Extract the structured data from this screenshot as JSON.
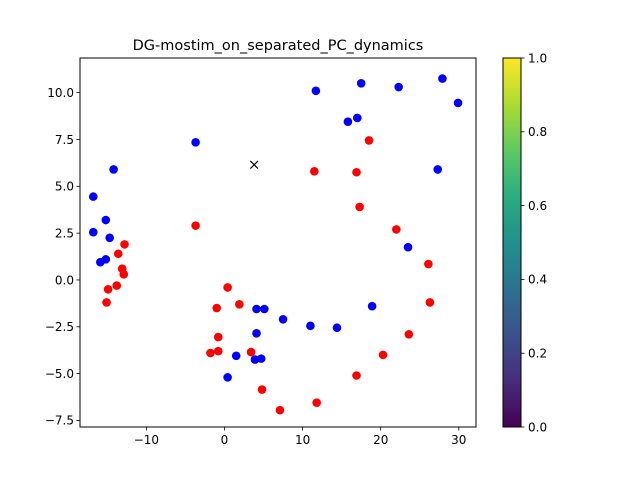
{
  "chart_data": {
    "type": "scatter",
    "title": "DG-mostim_on_separated_PC_dynamics",
    "xlabel": "",
    "ylabel": "",
    "xlim": [
      -18.5,
      32.2
    ],
    "ylim": [
      -7.85,
      11.85
    ],
    "xticks": [
      -10,
      0,
      10,
      20,
      30
    ],
    "xtick_labels": [
      "−10",
      "0",
      "10",
      "20",
      "30"
    ],
    "yticks": [
      -7.5,
      -5.0,
      -2.5,
      0.0,
      2.5,
      5.0,
      7.5,
      10.0
    ],
    "ytick_labels": [
      "−7.5",
      "−5.0",
      "−2.5",
      "0.0",
      "2.5",
      "5.0",
      "7.5",
      "10.0"
    ],
    "grid": false,
    "series": [
      {
        "color": "#0000ff",
        "marker": "circle",
        "points": [
          [
            -16.8,
            4.45
          ],
          [
            -16.8,
            2.55
          ],
          [
            -15.9,
            0.95
          ],
          [
            -15.2,
            1.1
          ],
          [
            -15.2,
            3.2
          ],
          [
            -14.7,
            2.25
          ],
          [
            -14.2,
            5.9
          ],
          [
            -3.7,
            7.35
          ],
          [
            11.7,
            10.1
          ],
          [
            15.8,
            8.45
          ],
          [
            17.0,
            8.65
          ],
          [
            17.5,
            10.5
          ],
          [
            22.3,
            10.3
          ],
          [
            27.9,
            10.75
          ],
          [
            29.9,
            9.45
          ],
          [
            27.3,
            5.9
          ],
          [
            23.5,
            1.75
          ],
          [
            18.9,
            -1.4
          ],
          [
            14.4,
            -2.55
          ],
          [
            11.0,
            -2.45
          ],
          [
            7.5,
            -2.1
          ],
          [
            5.1,
            -1.55
          ],
          [
            4.1,
            -1.55
          ],
          [
            4.1,
            -2.85
          ],
          [
            3.9,
            -4.25
          ],
          [
            4.7,
            -4.2
          ],
          [
            1.5,
            -4.05
          ],
          [
            0.4,
            -5.2
          ]
        ]
      },
      {
        "color": "#ff0000",
        "marker": "circle",
        "points": [
          [
            -12.8,
            1.9
          ],
          [
            -13.6,
            1.4
          ],
          [
            -13.1,
            0.6
          ],
          [
            -12.9,
            0.3
          ],
          [
            -13.8,
            -0.3
          ],
          [
            -14.9,
            -0.5
          ],
          [
            -15.1,
            -1.2
          ],
          [
            -3.7,
            2.9
          ],
          [
            11.5,
            5.8
          ],
          [
            16.9,
            5.75
          ],
          [
            17.3,
            3.9
          ],
          [
            18.5,
            7.45
          ],
          [
            22.0,
            2.7
          ],
          [
            26.1,
            0.85
          ],
          [
            26.3,
            -1.2
          ],
          [
            23.6,
            -2.9
          ],
          [
            20.3,
            -4.0
          ],
          [
            16.9,
            -5.1
          ],
          [
            11.8,
            -6.55
          ],
          [
            7.1,
            -6.95
          ],
          [
            4.8,
            -5.85
          ],
          [
            3.4,
            -3.85
          ],
          [
            1.9,
            -1.3
          ],
          [
            0.4,
            -0.4
          ],
          [
            -1.0,
            -1.5
          ],
          [
            -0.8,
            -3.05
          ],
          [
            -0.8,
            -3.8
          ],
          [
            -1.8,
            -3.9
          ]
        ]
      }
    ],
    "annotations": [
      {
        "marker": "x",
        "color": "#000000",
        "x": 3.8,
        "y": 6.15
      }
    ],
    "colorbar": {
      "colormap": "viridis",
      "range": [
        0.0,
        1.0
      ],
      "ticks": [
        0.0,
        0.2,
        0.4,
        0.6,
        0.8,
        1.0
      ],
      "tick_labels": [
        "0.0",
        "0.2",
        "0.4",
        "0.6",
        "0.8",
        "1.0"
      ]
    }
  }
}
